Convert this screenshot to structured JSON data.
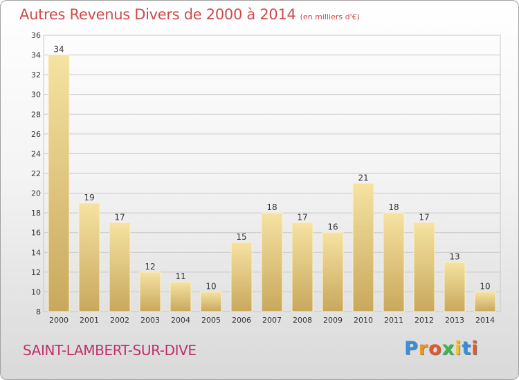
{
  "header": {
    "title": "Autres Revenus Divers de 2000 à 2014",
    "subtitle": "(en milliers d'€)"
  },
  "footer": {
    "place": "SAINT-LAMBERT-SUR-DIVE",
    "logo_text": "Proxiti",
    "logo_colors": [
      "#3a8ed8",
      "#e8962a",
      "#e05a2a",
      "#3ab84a",
      "#f0c020",
      "#3a8ed8",
      "#e05a2a"
    ]
  },
  "colors": {
    "title": "#d04a4a",
    "place": "#c0306a",
    "bar_light": "#f6e2a2",
    "bar_dark": "#c8a85c",
    "grid": "#c8c8c8"
  },
  "chart_data": {
    "type": "bar",
    "title": "Autres Revenus Divers de 2000 à 2014",
    "subtitle": "(en milliers d'€)",
    "categories": [
      "2000",
      "2001",
      "2002",
      "2003",
      "2004",
      "2005",
      "2006",
      "2007",
      "2008",
      "2009",
      "2010",
      "2011",
      "2012",
      "2013",
      "2014"
    ],
    "values": [
      34,
      19,
      17,
      12,
      11,
      10,
      15,
      18,
      17,
      16,
      21,
      18,
      17,
      13,
      10
    ],
    "ylim": [
      8,
      36
    ],
    "yticks": [
      8,
      10,
      12,
      14,
      16,
      18,
      20,
      22,
      24,
      26,
      28,
      30,
      32,
      34,
      36
    ],
    "grid": true,
    "data_labels": true
  }
}
